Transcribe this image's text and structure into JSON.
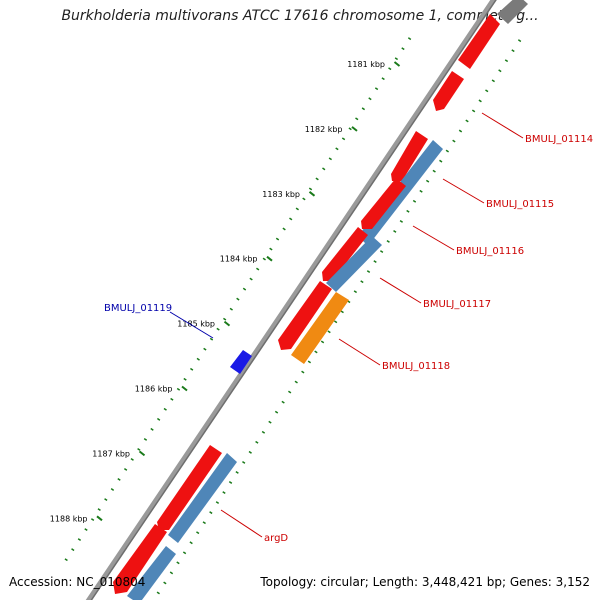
{
  "title": "Burkholderia multivorans ATCC 17616 chromosome 1, complete g...",
  "footer": {
    "accession": "Accession: NC_010804",
    "summary": "Topology: circular; Length: 3,448,421 bp; Genes: 3,152"
  },
  "colors": {
    "forward_gene": "#ee1111",
    "cds": "#4f86b8",
    "highlight_cds": "#f08a12",
    "reverse_gene": "#1a1ae6",
    "backbone": "#8a8a8a",
    "ticks": "#1a7a1a",
    "label_red": "#cc0000",
    "label_blue": "#0000aa"
  },
  "ticks": [
    {
      "label": "1181 kbp"
    },
    {
      "label": "1182 kbp"
    },
    {
      "label": "1183 kbp"
    },
    {
      "label": "1184 kbp"
    },
    {
      "label": "1185 kbp"
    },
    {
      "label": "1186 kbp"
    },
    {
      "label": "1187 kbp"
    },
    {
      "label": "1188 kbp"
    }
  ],
  "gene_labels": [
    {
      "name": "BMULJ_01114",
      "color": "red"
    },
    {
      "name": "BMULJ_01115",
      "color": "red"
    },
    {
      "name": "BMULJ_01116",
      "color": "red"
    },
    {
      "name": "BMULJ_01117",
      "color": "red"
    },
    {
      "name": "BMULJ_01118",
      "color": "red"
    },
    {
      "name": "BMULJ_01119",
      "color": "blue"
    },
    {
      "name": "argD",
      "color": "red"
    }
  ]
}
